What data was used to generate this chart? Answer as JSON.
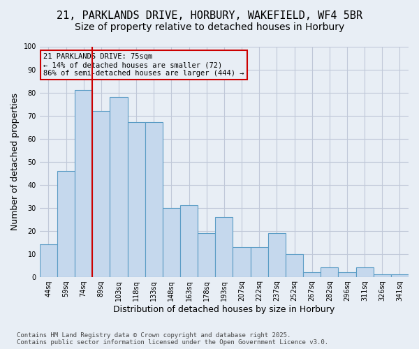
{
  "title": "21, PARKLANDS DRIVE, HORBURY, WAKEFIELD, WF4 5BR",
  "subtitle": "Size of property relative to detached houses in Horbury",
  "xlabel": "Distribution of detached houses by size in Horbury",
  "ylabel": "Number of detached properties",
  "categories": [
    "44sq",
    "59sq",
    "74sq",
    "89sq",
    "103sq",
    "118sq",
    "133sq",
    "148sq",
    "163sq",
    "178sq",
    "193sq",
    "207sq",
    "222sq",
    "237sq",
    "252sq",
    "267sq",
    "282sq",
    "296sq",
    "311sq",
    "326sq",
    "341sq"
  ],
  "bar_values": [
    14,
    46,
    81,
    72,
    78,
    67,
    67,
    30,
    31,
    19,
    26,
    13,
    13,
    19,
    10,
    2,
    4,
    2,
    4,
    1,
    1
  ],
  "bar_color": "#c5d8ed",
  "bar_edge_color": "#5a9cc5",
  "grid_color": "#c0c8d8",
  "background_color": "#e8eef5",
  "annotation_box_color": "#cc0000",
  "vline_color": "#cc0000",
  "vline_x_index": 2,
  "annotation_text": "21 PARKLANDS DRIVE: 75sqm\n← 14% of detached houses are smaller (72)\n86% of semi-detached houses are larger (444) →",
  "footer": "Contains HM Land Registry data © Crown copyright and database right 2025.\nContains public sector information licensed under the Open Government Licence v3.0.",
  "ylim": [
    0,
    100
  ],
  "yticks": [
    0,
    10,
    20,
    30,
    40,
    50,
    60,
    70,
    80,
    90,
    100
  ],
  "title_fontsize": 11,
  "subtitle_fontsize": 10,
  "label_fontsize": 9,
  "tick_fontsize": 7,
  "footer_fontsize": 6.5
}
